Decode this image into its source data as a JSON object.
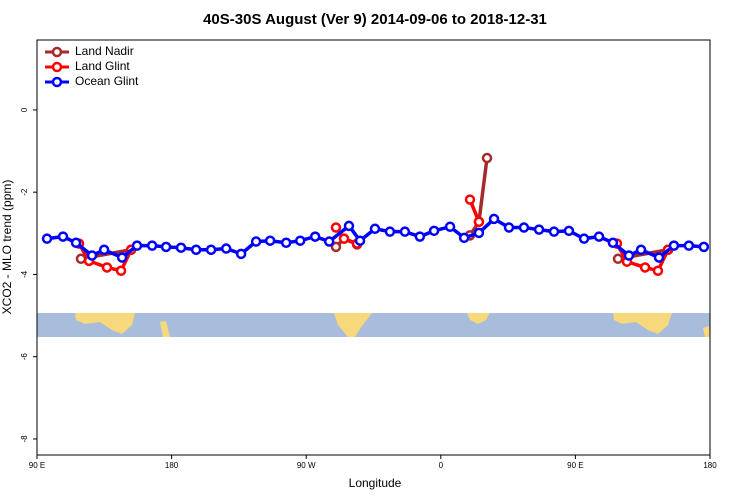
{
  "chart_data": {
    "type": "line",
    "title": "40S-30S August (Ver 9)   2014-09-06 to 2018-12-31",
    "x_label": "Longitude",
    "y_label": "XCO2 - MLO trend (ppm)",
    "xlim": [
      90,
      540
    ],
    "ylim": [
      -8.39,
      1.7
    ],
    "xticks": [
      {
        "value": 90,
        "label": "90 E"
      },
      {
        "value": 180,
        "label": "180"
      },
      {
        "value": 270,
        "label": "90 W"
      },
      {
        "value": 360,
        "label": "0"
      },
      {
        "value": 450,
        "label": "90 E"
      },
      {
        "value": 540,
        "label": "180"
      }
    ],
    "yticks": [
      -8,
      -6,
      -4,
      -2,
      0
    ],
    "legend": "top-left",
    "series": [
      {
        "name": "Land Nadir",
        "color": "#a52a2a",
        "x": [
          119.4,
          152.9,
          null,
          289.9,
          295.3,
          304,
          null,
          379.5,
          385.5,
          390.9,
          null,
          478.5,
          511.9
        ],
        "values": [
          -3.62,
          -3.4,
          null,
          -3.33,
          -3.13,
          -3.27,
          null,
          -3.05,
          -2.72,
          -1.17,
          null,
          -3.62,
          -3.4
        ]
      },
      {
        "name": "Land Glint",
        "color": "#ff0000",
        "x": [
          118.1,
          124.8,
          136.8,
          146.2,
          152.9,
          null,
          289.9,
          295.3,
          304,
          null,
          379.5,
          385.5,
          null,
          477.8,
          484.5,
          496.6,
          505.2,
          511.9
        ],
        "values": [
          -3.25,
          -3.67,
          -3.83,
          -3.91,
          -3.4,
          null,
          -2.86,
          -3.13,
          -3.25,
          null,
          -2.18,
          -2.72,
          null,
          -3.25,
          -3.69,
          -3.83,
          -3.91,
          -3.4
        ]
      },
      {
        "name": "Ocean Glint",
        "color": "#0000ff",
        "x": [
          96.7,
          107.4,
          116.1,
          126.8,
          134.9,
          146.9,
          156.9,
          167,
          176.3,
          186.3,
          196.4,
          206.4,
          216.5,
          226.5,
          236.5,
          245.9,
          256.6,
          266,
          276,
          285.4,
          298.6,
          306,
          316,
          326,
          336,
          346,
          355.5,
          366.2,
          375.6,
          385.5,
          395.6,
          405.6,
          415.6,
          425.7,
          435.7,
          445.7,
          455.8,
          465.8,
          475.1,
          485.8,
          493.9,
          505.9,
          515.9,
          525.9,
          535.9
        ],
        "values": [
          -3.13,
          -3.08,
          -3.23,
          -3.54,
          -3.4,
          -3.59,
          -3.3,
          -3.3,
          -3.33,
          -3.35,
          -3.4,
          -3.4,
          -3.37,
          -3.5,
          -3.2,
          -3.18,
          -3.23,
          -3.18,
          -3.08,
          -3.2,
          -2.82,
          -3.18,
          -2.89,
          -2.96,
          -2.96,
          -3.08,
          -2.94,
          -2.84,
          -3.11,
          -2.99,
          -2.65,
          -2.86,
          -2.86,
          -2.91,
          -2.96,
          -2.94,
          -3.13,
          -3.08,
          -3.23,
          -3.54,
          -3.4,
          -3.59,
          -3.3,
          -3.3,
          -3.33
        ]
      }
    ]
  }
}
